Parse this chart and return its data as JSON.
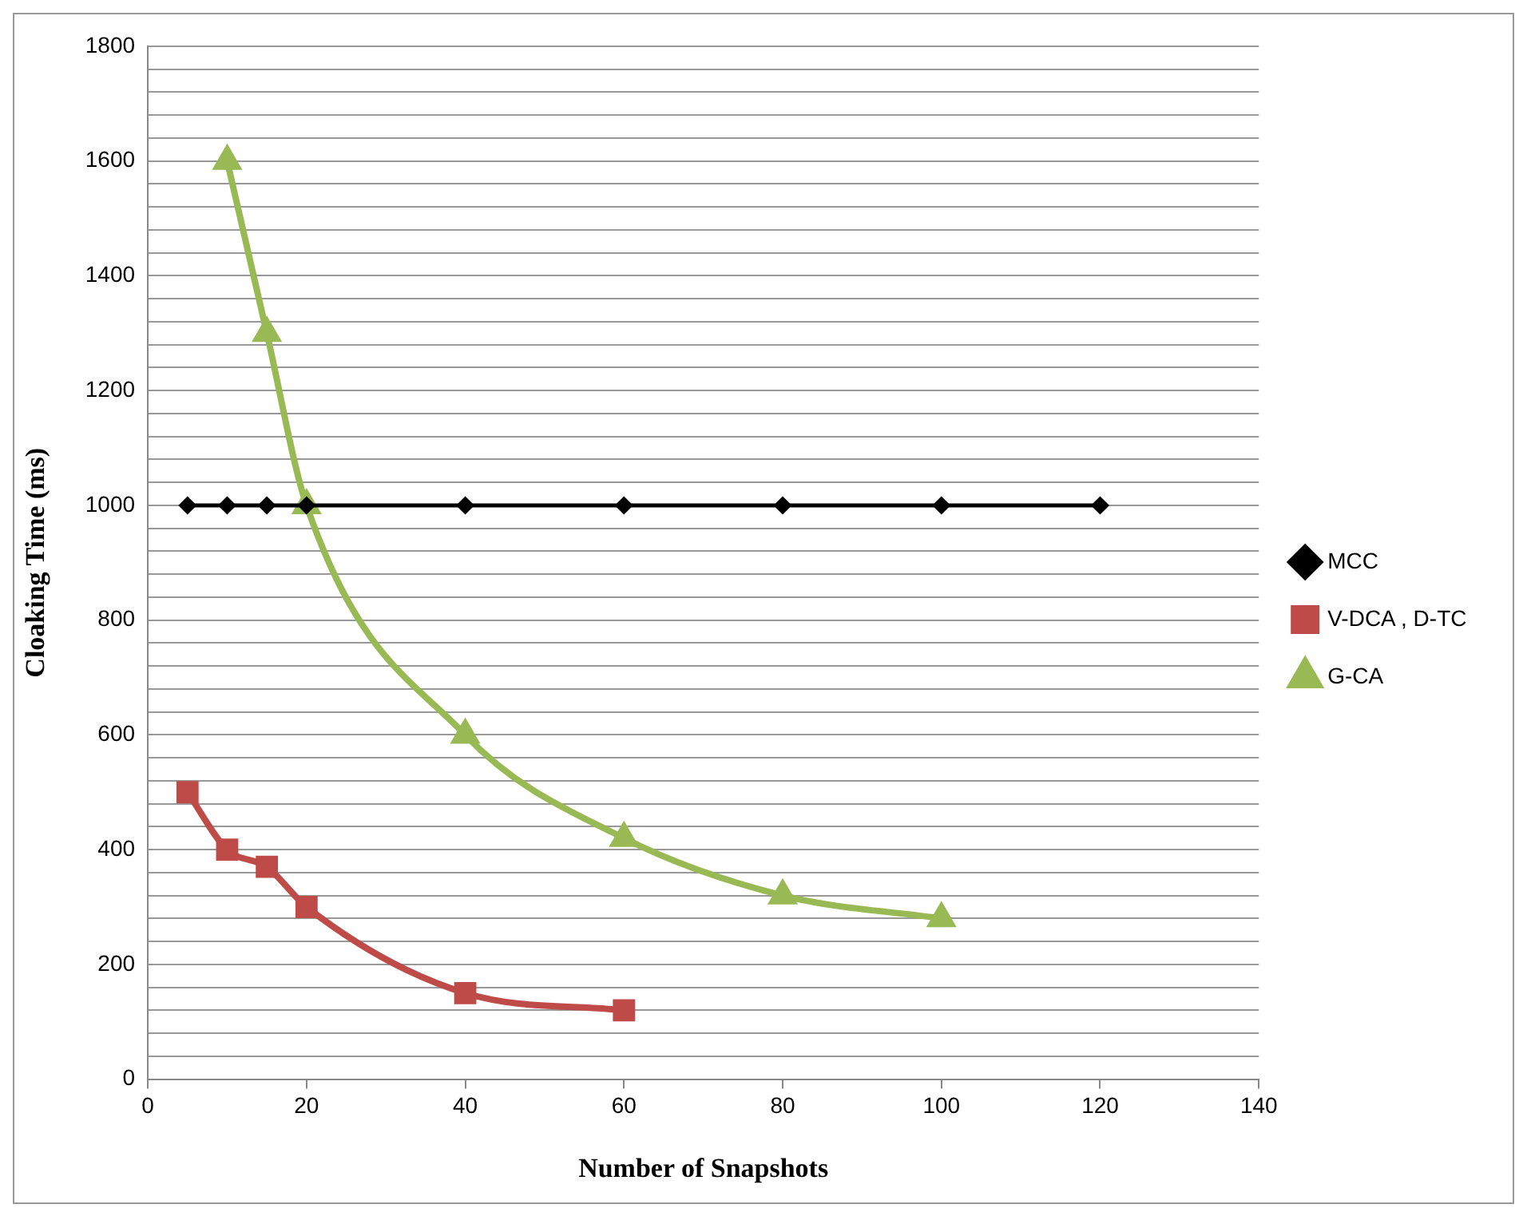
{
  "chart_data": {
    "type": "line",
    "xlabel": "Number of Snapshots",
    "ylabel": "Cloaking Time (ms)",
    "xlim": [
      0,
      140
    ],
    "xticks": [
      0,
      20,
      40,
      60,
      80,
      100,
      120,
      140
    ],
    "ylim": [
      0,
      1800
    ],
    "yticks": [
      0,
      {
        "value": 40,
        "label": null
      },
      {
        "value": 80,
        "label": null
      },
      {
        "value": 120,
        "label": null
      },
      {
        "value": 160,
        "label": null
      },
      200,
      {
        "value": 240,
        "label": null
      },
      {
        "value": 280,
        "label": null
      },
      {
        "value": 320,
        "label": null
      },
      {
        "value": 360,
        "label": null
      },
      400,
      {
        "value": 440,
        "label": null
      },
      {
        "value": 480,
        "label": null
      },
      {
        "value": 520,
        "label": null
      },
      {
        "value": 560,
        "label": null
      },
      600,
      {
        "value": 640,
        "label": null
      },
      {
        "value": 680,
        "label": null
      },
      {
        "value": 720,
        "label": null
      },
      {
        "value": 760,
        "label": null
      },
      800,
      {
        "value": 840,
        "label": null
      },
      {
        "value": 880,
        "label": null
      },
      {
        "value": 920,
        "label": null
      },
      {
        "value": 960,
        "label": null
      },
      1000,
      {
        "value": 1040,
        "label": null
      },
      {
        "value": 1080,
        "label": null
      },
      {
        "value": 1120,
        "label": null
      },
      {
        "value": 1160,
        "label": null
      },
      1200,
      {
        "value": 1240,
        "label": null
      },
      {
        "value": 1280,
        "label": null
      },
      {
        "value": 1320,
        "label": null
      },
      {
        "value": 1360,
        "label": null
      },
      1400,
      {
        "value": 1440,
        "label": null
      },
      {
        "value": 1480,
        "label": null
      },
      {
        "value": 1520,
        "label": null
      },
      {
        "value": 1560,
        "label": null
      },
      1600,
      {
        "value": 1640,
        "label": null
      },
      {
        "value": 1680,
        "label": null
      },
      {
        "value": 1720,
        "label": null
      },
      {
        "value": 1760,
        "label": null
      },
      1800
    ],
    "grid": "y",
    "legend": "right",
    "series": [
      {
        "name": "MCC",
        "color": "#000000",
        "marker": "diamond",
        "x": [
          5,
          10,
          15,
          20,
          40,
          60,
          80,
          100,
          120
        ],
        "values": [
          1000,
          1000,
          1000,
          1000,
          1000,
          1000,
          1000,
          1000,
          1000
        ]
      },
      {
        "name": "V-DCA , D-TC",
        "color": "#be4b48",
        "marker": "square",
        "x": [
          5,
          10,
          15,
          20,
          40,
          60
        ],
        "values": [
          500,
          400,
          370,
          300,
          150,
          120
        ]
      },
      {
        "name": "G-CA",
        "color": "#98b954",
        "marker": "triangle",
        "x": [
          10,
          15,
          20,
          40,
          60,
          80,
          100
        ],
        "values": [
          1600,
          1300,
          1000,
          600,
          420,
          320,
          280
        ]
      }
    ]
  }
}
